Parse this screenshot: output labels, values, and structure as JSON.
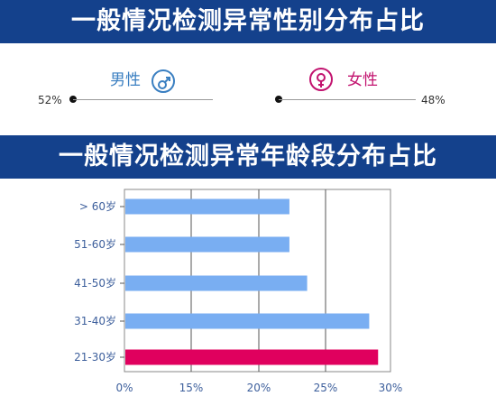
{
  "banner_gender": "一般情况检测异常性别分布占比",
  "banner_age": "一般情况检测异常年龄段分布占比",
  "gender": {
    "male": {
      "label": "男性",
      "pct_text": "52%",
      "value": 52,
      "color": "#3a7fc1",
      "icon": "male-symbol-icon"
    },
    "female": {
      "label": "女性",
      "pct_text": "48%",
      "value": 48,
      "color": "#c2136f",
      "icon": "female-symbol-icon"
    }
  },
  "chart_data": {
    "type": "bar",
    "orientation": "horizontal",
    "categories": [
      "> 60岁",
      "51-60岁",
      "41-50岁",
      "31-40岁",
      "21-30岁"
    ],
    "values": [
      18.5,
      18.5,
      20.5,
      27.5,
      28.5
    ],
    "xticks": [
      "0%",
      "15%",
      "20%",
      "25%",
      "30%"
    ],
    "xlim": [
      0,
      30
    ],
    "grid": true,
    "colors": {
      "default": "#79aef2",
      "highlight": "#e0005e",
      "axis_text": "#3d5f9c"
    },
    "highlight_category": "21-30岁"
  }
}
